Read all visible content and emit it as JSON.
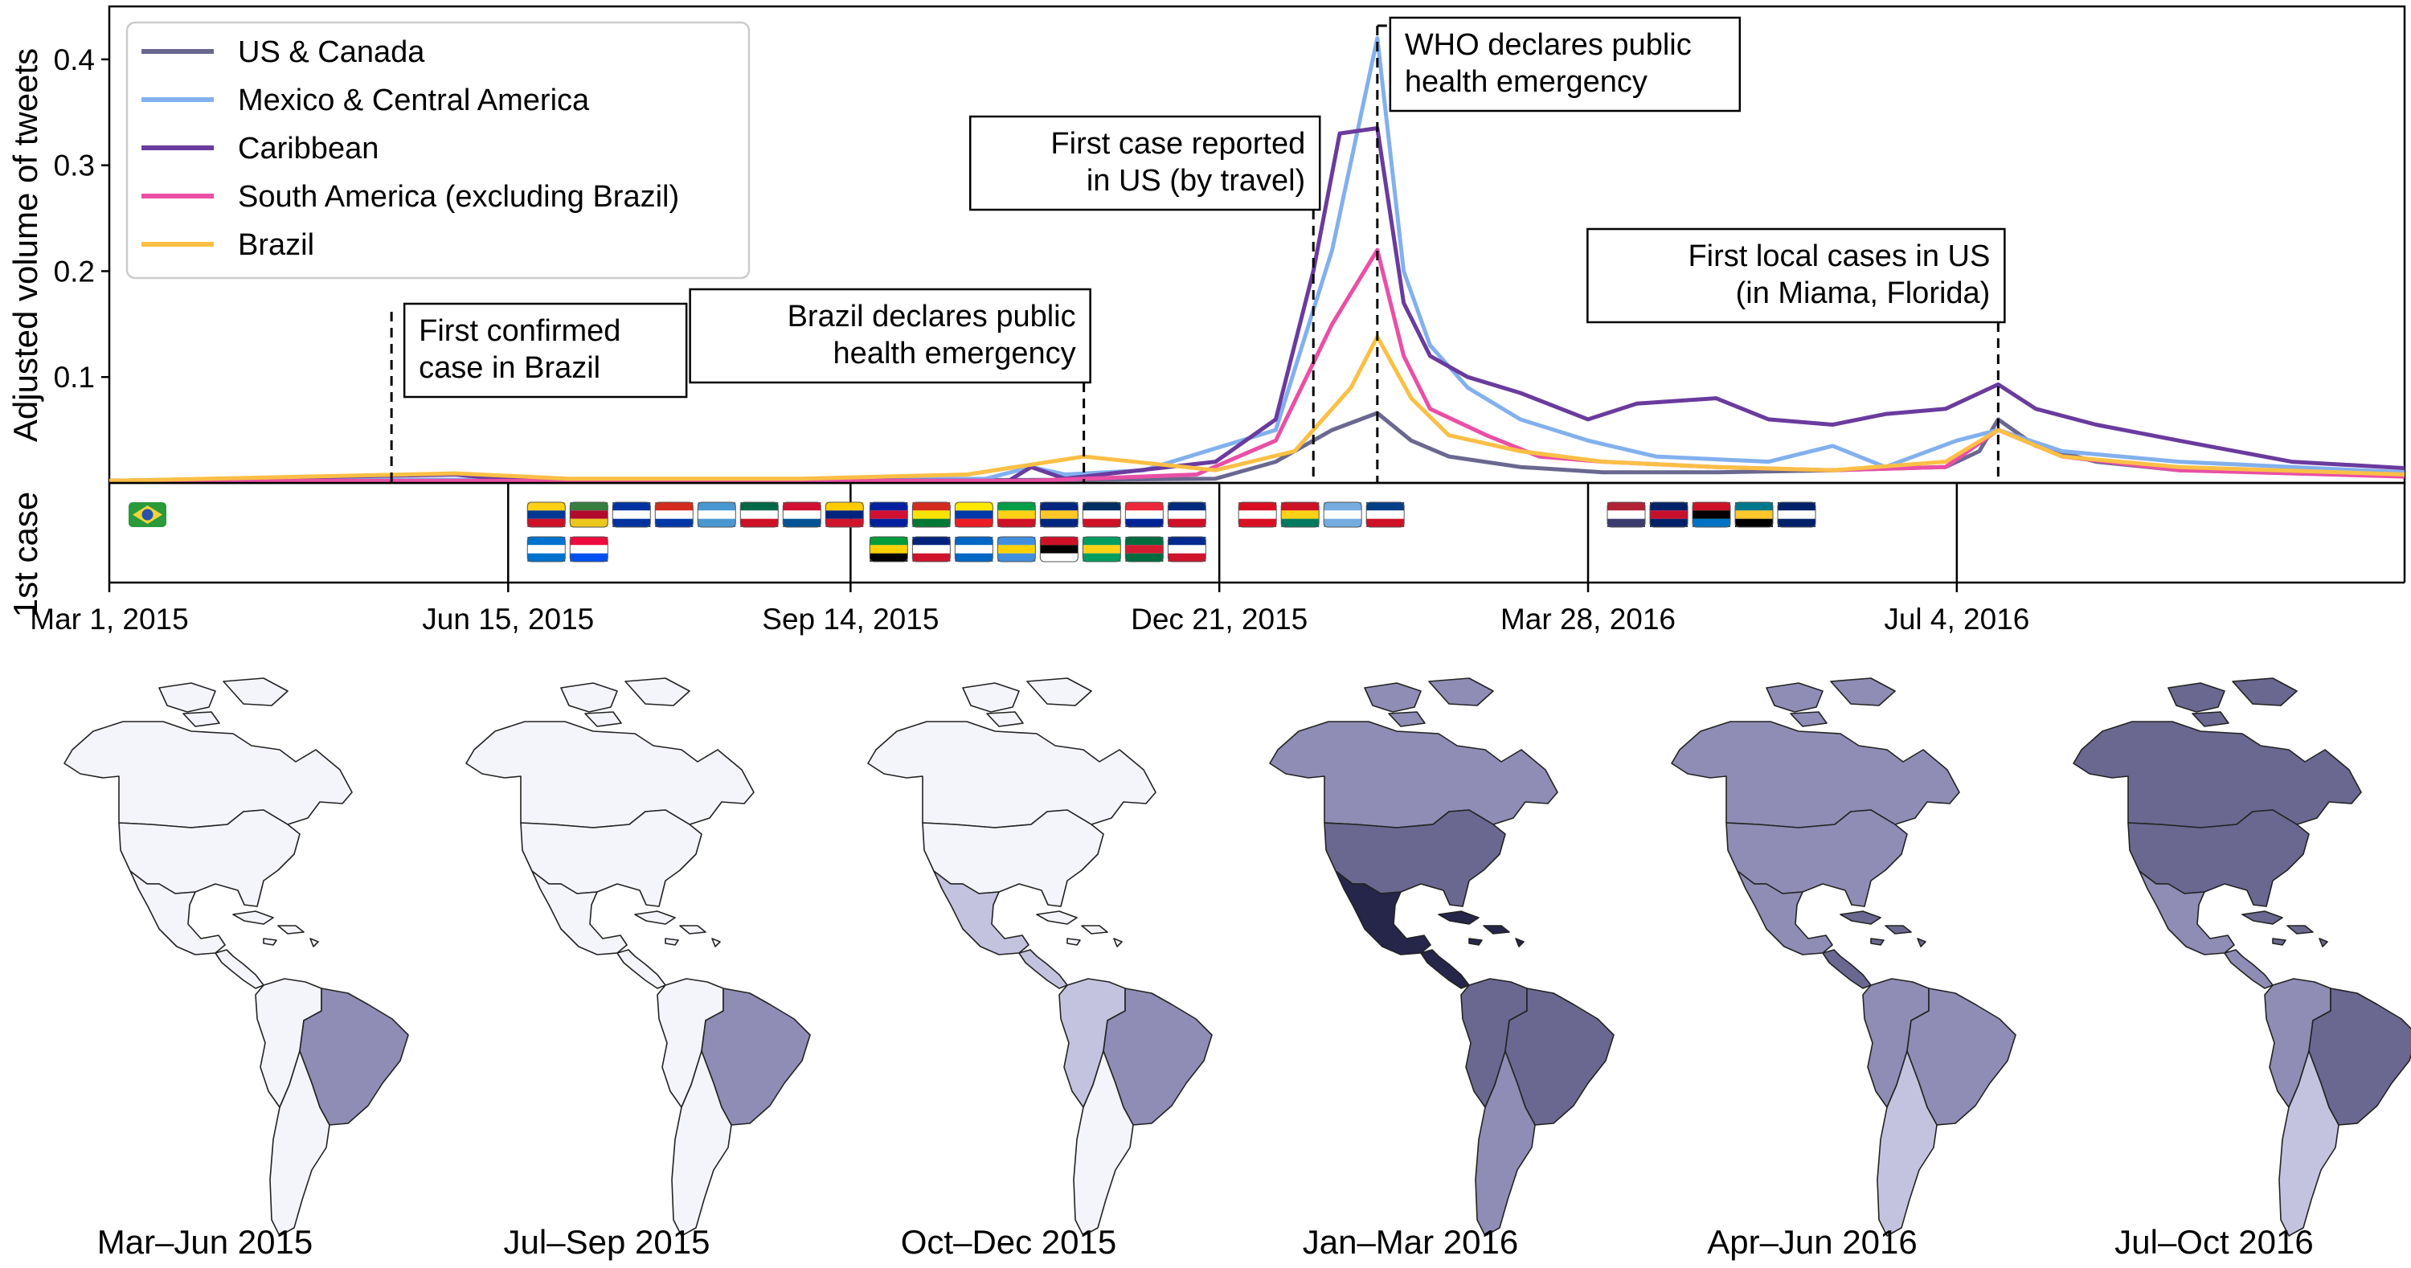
{
  "chart_data": {
    "type": "line",
    "ylabel": "Adjusted volume of tweets",
    "ylim": [
      0,
      0.45
    ],
    "yticks": [
      0.1,
      0.2,
      0.3,
      0.4
    ],
    "ytick_labels": [
      "0.1",
      "0.2",
      "0.3",
      "0.4"
    ],
    "xlim": [
      "2015-03-01",
      "2016-10-31"
    ],
    "xticks": [
      "2015-03-01",
      "2015-06-15",
      "2015-09-14",
      "2015-12-21",
      "2016-03-28",
      "2016-07-04"
    ],
    "xtick_labels": [
      "Mar 1, 2015",
      "Jun 15, 2015",
      "Sep 14, 2015",
      "Dec 21, 2015",
      "Mar 28, 2016",
      "Jul 4, 2016"
    ],
    "grid": false,
    "legend_position": "top-left",
    "series": [
      {
        "name": "US & Canada",
        "color": "#6a6890",
        "points": [
          [
            "2015-03-01",
            0.002
          ],
          [
            "2015-06-01",
            0.003
          ],
          [
            "2015-09-01",
            0.002
          ],
          [
            "2015-11-15",
            0.003
          ],
          [
            "2015-12-20",
            0.004
          ],
          [
            "2016-01-05",
            0.02
          ],
          [
            "2016-01-20",
            0.05
          ],
          [
            "2016-02-01",
            0.066
          ],
          [
            "2016-02-10",
            0.04
          ],
          [
            "2016-02-20",
            0.025
          ],
          [
            "2016-03-10",
            0.015
          ],
          [
            "2016-04-01",
            0.01
          ],
          [
            "2016-05-01",
            0.01
          ],
          [
            "2016-06-01",
            0.012
          ],
          [
            "2016-07-01",
            0.015
          ],
          [
            "2016-07-10",
            0.03
          ],
          [
            "2016-07-15",
            0.06
          ],
          [
            "2016-07-25",
            0.035
          ],
          [
            "2016-08-10",
            0.02
          ],
          [
            "2016-09-01",
            0.012
          ],
          [
            "2016-10-31",
            0.008
          ]
        ]
      },
      {
        "name": "Mexico & Central America",
        "color": "#82b0ee",
        "points": [
          [
            "2015-03-01",
            0.002
          ],
          [
            "2015-06-01",
            0.003
          ],
          [
            "2015-10-20",
            0.004
          ],
          [
            "2015-11-01",
            0.015
          ],
          [
            "2015-11-10",
            0.008
          ],
          [
            "2015-12-01",
            0.012
          ],
          [
            "2016-01-05",
            0.05
          ],
          [
            "2016-01-20",
            0.22
          ],
          [
            "2016-02-01",
            0.42
          ],
          [
            "2016-02-08",
            0.2
          ],
          [
            "2016-02-15",
            0.13
          ],
          [
            "2016-02-25",
            0.09
          ],
          [
            "2016-03-10",
            0.06
          ],
          [
            "2016-03-28",
            0.04
          ],
          [
            "2016-04-15",
            0.025
          ],
          [
            "2016-05-15",
            0.02
          ],
          [
            "2016-06-01",
            0.035
          ],
          [
            "2016-06-15",
            0.015
          ],
          [
            "2016-07-04",
            0.04
          ],
          [
            "2016-07-15",
            0.05
          ],
          [
            "2016-08-01",
            0.03
          ],
          [
            "2016-09-01",
            0.02
          ],
          [
            "2016-10-31",
            0.01
          ]
        ]
      },
      {
        "name": "Caribbean",
        "color": "#6a3b9e",
        "points": [
          [
            "2015-03-01",
            0.002
          ],
          [
            "2015-06-01",
            0.008
          ],
          [
            "2015-06-15",
            0.003
          ],
          [
            "2015-10-26",
            0.002
          ],
          [
            "2015-11-01",
            0.015
          ],
          [
            "2015-11-10",
            0.004
          ],
          [
            "2015-12-20",
            0.02
          ],
          [
            "2016-01-05",
            0.06
          ],
          [
            "2016-01-15",
            0.2
          ],
          [
            "2016-01-22",
            0.33
          ],
          [
            "2016-02-01",
            0.335
          ],
          [
            "2016-02-08",
            0.17
          ],
          [
            "2016-02-15",
            0.12
          ],
          [
            "2016-02-25",
            0.1
          ],
          [
            "2016-03-10",
            0.085
          ],
          [
            "2016-03-28",
            0.06
          ],
          [
            "2016-04-10",
            0.075
          ],
          [
            "2016-05-01",
            0.08
          ],
          [
            "2016-05-15",
            0.06
          ],
          [
            "2016-06-01",
            0.055
          ],
          [
            "2016-06-15",
            0.065
          ],
          [
            "2016-07-01",
            0.07
          ],
          [
            "2016-07-15",
            0.093
          ],
          [
            "2016-07-25",
            0.07
          ],
          [
            "2016-08-10",
            0.055
          ],
          [
            "2016-09-01",
            0.04
          ],
          [
            "2016-10-01",
            0.02
          ],
          [
            "2016-10-31",
            0.014
          ]
        ]
      },
      {
        "name": "South America (excluding Brazil)",
        "color": "#ea4fa5",
        "points": [
          [
            "2015-03-01",
            0.002
          ],
          [
            "2015-11-01",
            0.002
          ],
          [
            "2015-12-15",
            0.008
          ],
          [
            "2016-01-05",
            0.04
          ],
          [
            "2016-01-20",
            0.15
          ],
          [
            "2016-02-01",
            0.22
          ],
          [
            "2016-02-08",
            0.12
          ],
          [
            "2016-02-15",
            0.07
          ],
          [
            "2016-03-01",
            0.045
          ],
          [
            "2016-03-15",
            0.025
          ],
          [
            "2016-04-01",
            0.02
          ],
          [
            "2016-05-01",
            0.015
          ],
          [
            "2016-06-01",
            0.012
          ],
          [
            "2016-07-01",
            0.015
          ],
          [
            "2016-07-15",
            0.05
          ],
          [
            "2016-08-01",
            0.025
          ],
          [
            "2016-09-01",
            0.012
          ],
          [
            "2016-10-31",
            0.006
          ]
        ]
      },
      {
        "name": "Brazil",
        "color": "#fbbf45",
        "points": [
          [
            "2015-03-01",
            0.002
          ],
          [
            "2015-06-01",
            0.009
          ],
          [
            "2015-07-01",
            0.004
          ],
          [
            "2015-09-01",
            0.004
          ],
          [
            "2015-10-15",
            0.008
          ],
          [
            "2015-11-15",
            0.025
          ],
          [
            "2015-12-20",
            0.012
          ],
          [
            "2016-01-10",
            0.03
          ],
          [
            "2016-01-25",
            0.09
          ],
          [
            "2016-02-01",
            0.138
          ],
          [
            "2016-02-10",
            0.08
          ],
          [
            "2016-02-20",
            0.045
          ],
          [
            "2016-03-10",
            0.03
          ],
          [
            "2016-04-01",
            0.02
          ],
          [
            "2016-05-01",
            0.015
          ],
          [
            "2016-06-01",
            0.012
          ],
          [
            "2016-07-01",
            0.02
          ],
          [
            "2016-07-15",
            0.05
          ],
          [
            "2016-08-01",
            0.025
          ],
          [
            "2016-09-01",
            0.015
          ],
          [
            "2016-10-31",
            0.008
          ]
        ]
      }
    ],
    "annotations": [
      {
        "date": "2015-05-15",
        "lines": [
          "First confirmed",
          "case in Brazil"
        ],
        "align": "left"
      },
      {
        "date": "2015-11-15",
        "lines": [
          "Brazil declares public",
          "health emergency"
        ],
        "align": "right"
      },
      {
        "date": "2016-01-15",
        "lines": [
          "First case reported",
          "in US (by travel)"
        ],
        "align": "right"
      },
      {
        "date": "2016-02-01",
        "lines": [
          "WHO declares public",
          "health emergency"
        ],
        "align": "left"
      },
      {
        "date": "2016-07-15",
        "lines": [
          "First local cases in US",
          "(in Miama, Florida)"
        ],
        "align": "right"
      }
    ]
  },
  "first_case": {
    "label": "1st case",
    "groups": [
      {
        "flags": [
          {
            "colors": [
              "#2a9a3a",
              "#f1d23b",
              "#2653a8"
            ],
            "style": "brazil"
          }
        ]
      },
      {
        "flags": [
          {
            "colors": [
              "#fcd116",
              "#003893",
              "#ce1126"
            ]
          },
          {
            "colors": [
              "#377e3f",
              "#b40a2d",
              "#ecc81d"
            ]
          },
          {
            "colors": [
              "#0033a0",
              "#ffffff",
              "#0033a0"
            ]
          },
          {
            "colors": [
              "#d52b1e",
              "#ffffff",
              "#0038a8"
            ]
          },
          {
            "colors": [
              "#4997d0",
              "#ffffff",
              "#4997d0"
            ]
          },
          {
            "colors": [
              "#006847",
              "#ffffff",
              "#ce1126"
            ]
          },
          {
            "colors": [
              "#d21034",
              "#ffffff",
              "#005293"
            ]
          },
          {
            "colors": [
              "#ffcc00",
              "#00247d",
              "#cf142b"
            ]
          },
          {
            "colors": [
              "#0073cf",
              "#ffffff",
              "#0073cf"
            ]
          },
          {
            "colors": [
              "#ed0a3f",
              "#ffffff",
              "#0050f0"
            ]
          }
        ]
      },
      {
        "flags": [
          {
            "colors": [
              "#00209f",
              "#d21034",
              "#00209f"
            ]
          },
          {
            "colors": [
              "#d52b1e",
              "#f9e300",
              "#007934"
            ]
          },
          {
            "colors": [
              "#ffe800",
              "#0038a8",
              "#ed1c24"
            ]
          },
          {
            "colors": [
              "#009e49",
              "#fcd116",
              "#ce1126"
            ]
          },
          {
            "colors": [
              "#00267f",
              "#ffc726",
              "#00267f"
            ]
          },
          {
            "colors": [
              "#002d62",
              "#ffffff",
              "#ce1126"
            ]
          },
          {
            "colors": [
              "#ed2939",
              "#ffffff",
              "#002395"
            ]
          },
          {
            "colors": [
              "#002b7f",
              "#ffffff",
              "#ce1126"
            ]
          },
          {
            "colors": [
              "#009b3a",
              "#fed100",
              "#000000"
            ]
          },
          {
            "colors": [
              "#00247d",
              "#ffffff",
              "#cf142b"
            ]
          },
          {
            "colors": [
              "#0067c6",
              "#ffffff",
              "#0067c6"
            ]
          },
          {
            "colors": [
              "#418fde",
              "#ffd100",
              "#418fde"
            ]
          },
          {
            "colors": [
              "#ce1126",
              "#000000",
              "#ffffff"
            ]
          },
          {
            "colors": [
              "#009e60",
              "#fcd116",
              "#009e60"
            ]
          },
          {
            "colors": [
              "#006b3f",
              "#d41c30",
              "#006b3f"
            ]
          },
          {
            "colors": [
              "#002a8f",
              "#ffffff",
              "#cf142b"
            ]
          }
        ]
      },
      {
        "flags": [
          {
            "colors": [
              "#d91023",
              "#ffffff",
              "#d91023"
            ]
          },
          {
            "colors": [
              "#ce1126",
              "#fcd116",
              "#007a5e"
            ]
          },
          {
            "colors": [
              "#74acdf",
              "#ffffff",
              "#74acdf"
            ]
          },
          {
            "colors": [
              "#003f87",
              "#ffffff",
              "#ce1126"
            ]
          }
        ]
      },
      {
        "flags": [
          {
            "colors": [
              "#b22234",
              "#ffffff",
              "#3c3b6e"
            ]
          },
          {
            "colors": [
              "#012169",
              "#c8102e",
              "#012169"
            ]
          },
          {
            "colors": [
              "#ce1126",
              "#000000",
              "#0072c6"
            ]
          },
          {
            "colors": [
              "#00778b",
              "#ffc72c",
              "#000000"
            ]
          },
          {
            "colors": [
              "#012169",
              "#ffffff",
              "#012169"
            ]
          }
        ]
      }
    ]
  },
  "maps": {
    "colors": {
      "none": "#f4f4fb",
      "low": "#c4c3df",
      "mid": "#8f8db5",
      "high": "#6a6890",
      "max": "#26254a"
    },
    "panels": [
      {
        "label": "Mar–Jun 2015",
        "regions": {
          "north": "none",
          "usa": "none",
          "mexico": "none",
          "central": "none",
          "caribbean": "none",
          "andes": "none",
          "brazil": "mid",
          "south": "none"
        }
      },
      {
        "label": "Jul–Sep 2015",
        "regions": {
          "north": "none",
          "usa": "none",
          "mexico": "none",
          "central": "none",
          "caribbean": "none",
          "andes": "none",
          "brazil": "mid",
          "south": "none"
        }
      },
      {
        "label": "Oct–Dec 2015",
        "regions": {
          "north": "none",
          "usa": "none",
          "mexico": "low",
          "central": "low",
          "caribbean": "none",
          "andes": "low",
          "brazil": "mid",
          "south": "none"
        }
      },
      {
        "label": "Jan–Mar 2016",
        "regions": {
          "north": "mid",
          "usa": "high",
          "mexico": "max",
          "central": "max",
          "caribbean": "max",
          "andes": "high",
          "brazil": "high",
          "south": "mid"
        }
      },
      {
        "label": "Apr–Jun 2016",
        "regions": {
          "north": "mid",
          "usa": "mid",
          "mexico": "mid",
          "central": "high",
          "caribbean": "high",
          "andes": "mid",
          "brazil": "mid",
          "south": "low"
        }
      },
      {
        "label": "Jul–Oct 2016",
        "regions": {
          "north": "high",
          "usa": "high",
          "mexico": "mid",
          "central": "mid",
          "caribbean": "high",
          "andes": "mid",
          "brazil": "high",
          "south": "low"
        }
      }
    ]
  }
}
